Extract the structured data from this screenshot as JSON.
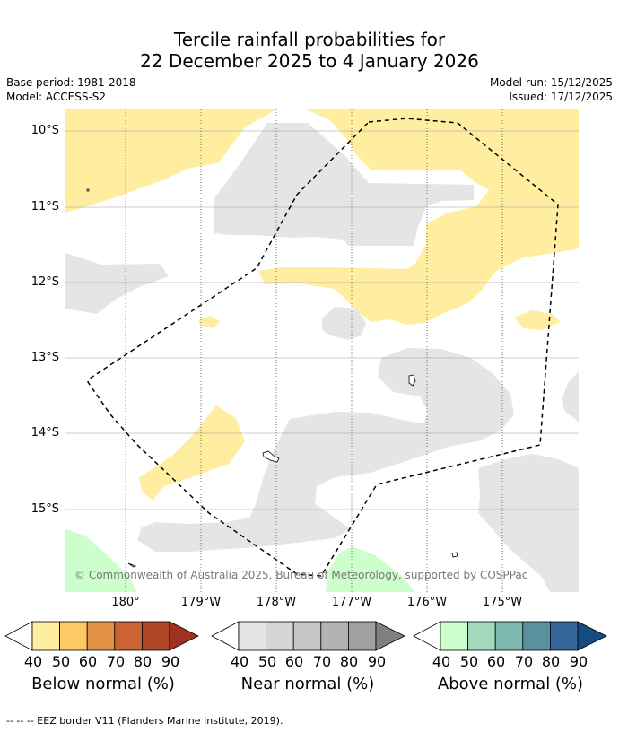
{
  "title": {
    "line1": "Tercile rainfall probabilities for",
    "line2": "22 December 2025 to 4 January 2026"
  },
  "meta": {
    "base_period": "Base period: 1981-2018",
    "model": "Model: ACCESS-S2",
    "model_run": "Model run: 15/12/2025",
    "issued": "Issued: 17/12/2025"
  },
  "map": {
    "lat_labels": [
      "10°S",
      "11°S",
      "12°S",
      "13°S",
      "14°S",
      "15°S"
    ],
    "lon_labels": [
      "180°",
      "179°W",
      "178°W",
      "177°W",
      "176°W",
      "175°W"
    ],
    "copyright": "© Commonwealth of Australia 2025, Bureau of Meteorology, supported by COSPPac",
    "colors": {
      "below_40": "#ffeda0",
      "near_40": "#e5e5e5",
      "above_40": "#ccffcc",
      "gridline": "#999999",
      "eez_border": "#000000"
    }
  },
  "legend": {
    "ticks": [
      "40",
      "50",
      "60",
      "70",
      "80",
      "90"
    ],
    "below": {
      "label": "Below normal (%)",
      "colors": [
        "#ffeda0",
        "#fec965",
        "#e19244",
        "#cd6232",
        "#ad4526",
        "#9e3221"
      ]
    },
    "near": {
      "label": "Near normal (%)",
      "colors": [
        "#e5e5e5",
        "#d6d6d6",
        "#c7c7c7",
        "#b3b3b3",
        "#a0a0a0",
        "#808080"
      ]
    },
    "above": {
      "label": "Above normal (%)",
      "colors": [
        "#ccffcc",
        "#a3d9bd",
        "#7fb7b1",
        "#5a91a0",
        "#336699",
        "#134d80"
      ]
    }
  },
  "footnote": "--  --  -- EEZ border V11 (Flanders Marine Institute, 2019)."
}
